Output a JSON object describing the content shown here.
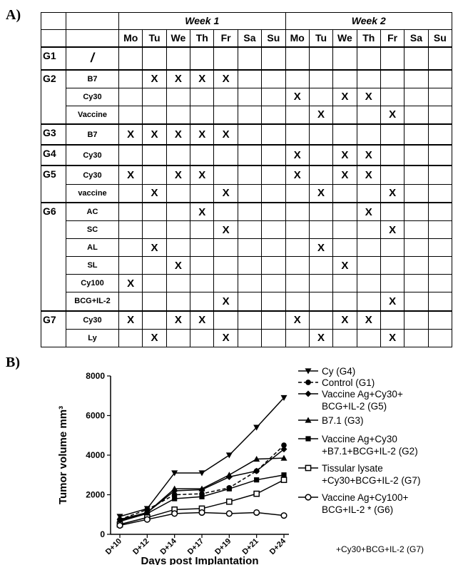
{
  "panel_a_label": "A)",
  "panel_b_label": "B)",
  "schedule": {
    "weeks": [
      "Week 1",
      "Week 2"
    ],
    "days": [
      "Mo",
      "Tu",
      "We",
      "Th",
      "Fr",
      "Sa",
      "Su",
      "Mo",
      "Tu",
      "We",
      "Th",
      "Fr",
      "Sa",
      "Su"
    ],
    "mark": "X",
    "rows": [
      {
        "group": "G1",
        "treatment": "/",
        "marks": [],
        "group_span": 1
      },
      {
        "group": "G2",
        "treatment": "B7",
        "marks": [
          1,
          2,
          3,
          4
        ],
        "group_span": 3
      },
      {
        "group": "",
        "treatment": "Cy30",
        "marks": [
          7,
          9,
          10
        ]
      },
      {
        "group": "",
        "treatment": "Vaccine",
        "marks": [
          8,
          11
        ]
      },
      {
        "group": "G3",
        "treatment": "B7",
        "marks": [
          0,
          1,
          2,
          3,
          4
        ],
        "group_span": 1
      },
      {
        "group": "G4",
        "treatment": "Cy30",
        "marks": [
          7,
          9,
          10
        ],
        "group_span": 1
      },
      {
        "group": "G5",
        "treatment": "Cy30",
        "marks": [
          0,
          2,
          3,
          7,
          9,
          10
        ],
        "group_span": 2
      },
      {
        "group": "",
        "treatment": "vaccine",
        "marks": [
          1,
          4,
          8,
          11
        ]
      },
      {
        "group": "G6",
        "treatment": "AC",
        "marks": [
          3,
          10
        ],
        "group_span": 6
      },
      {
        "group": "",
        "treatment": "SC",
        "marks": [
          4,
          11
        ]
      },
      {
        "group": "",
        "treatment": "AL",
        "marks": [
          1,
          8
        ]
      },
      {
        "group": "",
        "treatment": "SL",
        "marks": [
          2,
          9
        ]
      },
      {
        "group": "",
        "treatment": "Cy100",
        "marks": [
          0
        ]
      },
      {
        "group": "",
        "treatment": "BCG+IL-2",
        "marks": [
          4,
          11
        ]
      },
      {
        "group": "G7",
        "treatment": "Cy30",
        "marks": [
          0,
          2,
          3,
          7,
          9,
          10
        ],
        "group_span": 2
      },
      {
        "group": "",
        "treatment": "Ly",
        "marks": [
          1,
          4,
          8,
          11
        ]
      }
    ]
  },
  "chart_data": {
    "type": "line",
    "categories": [
      "D+10",
      "D+12",
      "D+14",
      "D+17",
      "D+19",
      "D+21",
      "D+24"
    ],
    "xlabel": "Days post Implantation",
    "ylabel": "Tumor volume mm³",
    "ylim": [
      0,
      8000
    ],
    "yticks": [
      0,
      2000,
      4000,
      6000,
      8000
    ],
    "legend_position": "right",
    "series": [
      {
        "name": "Cy (G4)",
        "marker": "triangle-down",
        "values": [
          900,
          1300,
          3100,
          3100,
          4000,
          5400,
          6900
        ]
      },
      {
        "name": "Control (G1)",
        "marker": "circle-filled",
        "dashed": true,
        "values": [
          750,
          1250,
          2000,
          2050,
          2350,
          3200,
          4500
        ]
      },
      {
        "name": "Vaccine Ag+Cy30+ BCG+IL-2 (G5)",
        "marker": "diamond",
        "values": [
          750,
          1100,
          2200,
          2250,
          2900,
          3200,
          4300
        ]
      },
      {
        "name": "B7.1 (G3)",
        "marker": "triangle-up",
        "values": [
          700,
          1100,
          2300,
          2300,
          3000,
          3800,
          3850
        ]
      },
      {
        "name": "Vaccine Ag+Cy30 +B7.1+BCG+IL-2 (G2)",
        "marker": "square-filled",
        "values": [
          650,
          1050,
          1800,
          1900,
          2300,
          2750,
          3000
        ]
      },
      {
        "name": "Tissular lysate +Cy30+BCG+IL-2 (G7)",
        "marker": "square-open",
        "values": [
          500,
          850,
          1250,
          1300,
          1650,
          2050,
          2750
        ]
      },
      {
        "name": "Vaccine Ag+Cy100+ BCG+IL-2 * (G6)",
        "marker": "circle-open",
        "values": [
          450,
          750,
          1050,
          1100,
          1050,
          1100,
          950
        ]
      }
    ],
    "legend_lines": [
      [
        "Cy (G4)"
      ],
      [
        "Control (G1)"
      ],
      [
        "Vaccine Ag+Cy30+",
        "BCG+IL-2 (G5)"
      ],
      [
        "B7.1 (G3)"
      ],
      [
        "Vaccine Ag+Cy30",
        "+B7.1+BCG+IL-2 (G2)"
      ],
      [
        "Tissular lysate",
        "+Cy30+BCG+IL-2 (G7)"
      ],
      [
        "Vaccine Ag+Cy100+",
        "BCG+IL-2 * (G6)"
      ]
    ]
  },
  "footer_text": "+Cy30+BCG+IL-2 (G7)"
}
